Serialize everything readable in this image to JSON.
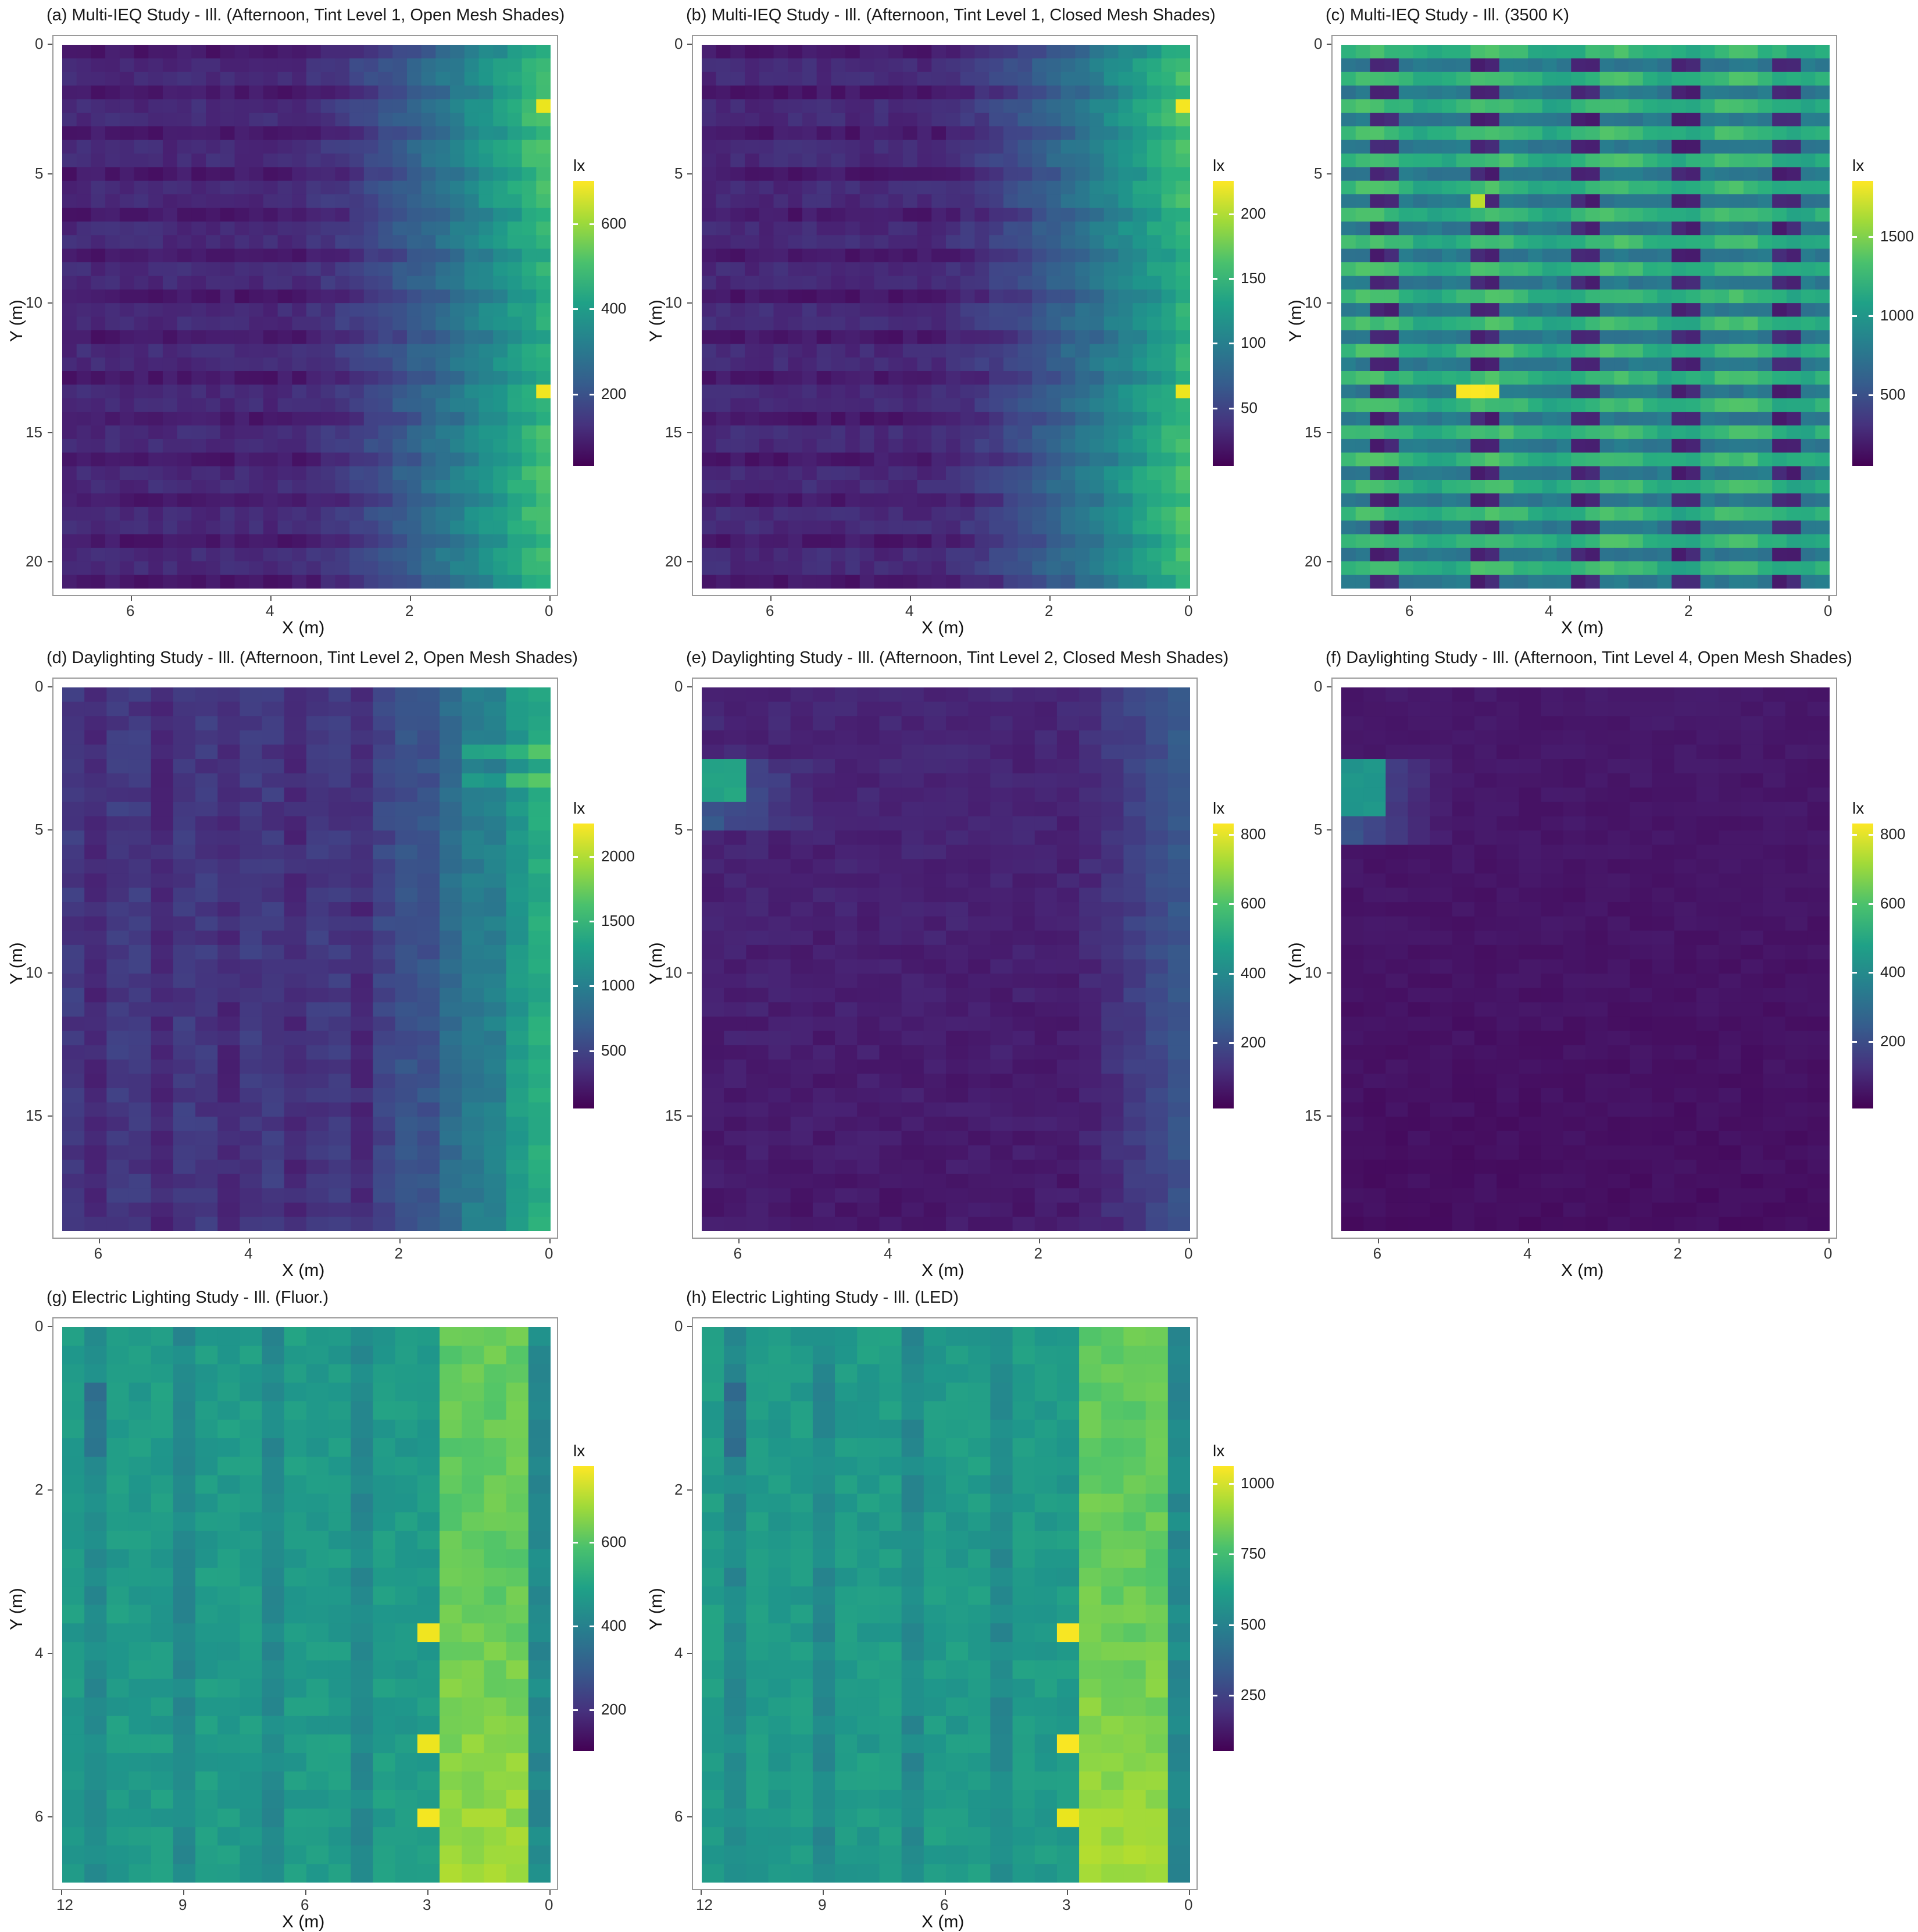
{
  "chart_data": [
    {
      "id": "a",
      "type": "heatmap",
      "title": "(a) Multi-IEQ Study - Ill. (Afternoon, Tint Level 1, Open Mesh Shades)",
      "xlabel": "X (m)",
      "ylabel": "Y (m)",
      "xlim": [
        7,
        0
      ],
      "ylim": [
        0,
        21
      ],
      "xticks": [
        "6",
        "4",
        "2",
        "0"
      ],
      "yticks": [
        "0",
        "5",
        "10",
        "15",
        "20"
      ],
      "legend_title": "lx",
      "legend_ticks": [
        "200",
        "400",
        "600"
      ],
      "legend_range": [
        30,
        700
      ],
      "pattern": "window_right"
    },
    {
      "id": "b",
      "type": "heatmap",
      "title": "(b) Multi-IEQ Study - Ill. (Afternoon, Tint Level 1, Closed Mesh Shades)",
      "xlabel": "X (m)",
      "ylabel": "Y (m)",
      "xlim": [
        7,
        0
      ],
      "ylim": [
        0,
        21
      ],
      "xticks": [
        "6",
        "4",
        "2",
        "0"
      ],
      "yticks": [
        "0",
        "5",
        "10",
        "15",
        "20"
      ],
      "legend_title": "lx",
      "legend_ticks": [
        "50",
        "100",
        "150",
        "200"
      ],
      "legend_range": [
        5,
        225
      ],
      "pattern": "window_right"
    },
    {
      "id": "c",
      "type": "heatmap",
      "title": "(c) Multi-IEQ Study - Ill. (3500 K)",
      "xlabel": "X (m)",
      "ylabel": "Y (m)",
      "xlim": [
        7,
        0
      ],
      "ylim": [
        0,
        21
      ],
      "xticks": [
        "6",
        "4",
        "2",
        "0"
      ],
      "yticks": [
        "0",
        "5",
        "10",
        "15",
        "20"
      ],
      "legend_title": "lx",
      "legend_ticks": [
        "500",
        "1000",
        "1500"
      ],
      "legend_range": [
        50,
        1850
      ],
      "pattern": "stripes"
    },
    {
      "id": "d",
      "type": "heatmap",
      "title": "(d) Daylighting Study - Ill. (Afternoon, Tint Level 2, Open Mesh Shades)",
      "xlabel": "X (m)",
      "ylabel": "Y (m)",
      "xlim": [
        6.5,
        0
      ],
      "ylim": [
        0,
        19
      ],
      "xticks": [
        "6",
        "4",
        "2",
        "0"
      ],
      "yticks": [
        "0",
        "5",
        "10",
        "15"
      ],
      "legend_title": "lx",
      "legend_ticks": [
        "500",
        "1000",
        "1500",
        "2000"
      ],
      "legend_range": [
        50,
        2250
      ],
      "pattern": "daylight_strong"
    },
    {
      "id": "e",
      "type": "heatmap",
      "title": "(e) Daylighting Study - Ill. (Afternoon, Tint Level 2, Closed Mesh Shades)",
      "xlabel": "X (m)",
      "ylabel": "Y (m)",
      "xlim": [
        6.5,
        0
      ],
      "ylim": [
        0,
        19
      ],
      "xticks": [
        "6",
        "4",
        "2",
        "0"
      ],
      "yticks": [
        "0",
        "5",
        "10",
        "15"
      ],
      "legend_title": "lx",
      "legend_ticks": [
        "200",
        "400",
        "600",
        "800"
      ],
      "legend_range": [
        10,
        830
      ],
      "pattern": "daylight_dim"
    },
    {
      "id": "f",
      "type": "heatmap",
      "title": "(f) Daylighting Study - Ill. (Afternoon, Tint Level 4, Open Mesh Shades)",
      "xlabel": "X (m)",
      "ylabel": "Y (m)",
      "xlim": [
        6.5,
        0
      ],
      "ylim": [
        0,
        19
      ],
      "xticks": [
        "6",
        "4",
        "2",
        "0"
      ],
      "yticks": [
        "0",
        "5",
        "10",
        "15"
      ],
      "legend_title": "lx",
      "legend_ticks": [
        "200",
        "400",
        "600",
        "800"
      ],
      "legend_range": [
        5,
        830
      ],
      "pattern": "daylight_dark"
    },
    {
      "id": "g",
      "type": "heatmap",
      "title": "(g) Electric Lighting Study - Ill. (Fluor.)",
      "xlabel": "X (m)",
      "ylabel": "Y (m)",
      "xlim": [
        12,
        0
      ],
      "ylim": [
        0,
        6.8
      ],
      "xticks": [
        "12",
        "9",
        "6",
        "3",
        "0"
      ],
      "yticks": [
        "0",
        "2",
        "4",
        "6"
      ],
      "legend_title": "lx",
      "legend_ticks": [
        "200",
        "400",
        "600"
      ],
      "legend_range": [
        100,
        780
      ],
      "pattern": "electric"
    },
    {
      "id": "h",
      "type": "heatmap",
      "title": "(h) Electric Lighting Study - Ill. (LED)",
      "xlabel": "X (m)",
      "ylabel": "Y (m)",
      "xlim": [
        12,
        0
      ],
      "ylim": [
        0,
        6.8
      ],
      "xticks": [
        "12",
        "9",
        "6",
        "3",
        "0"
      ],
      "yticks": [
        "0",
        "2",
        "4",
        "6"
      ],
      "legend_title": "lx",
      "legend_ticks": [
        "250",
        "500",
        "750",
        "1000"
      ],
      "legend_range": [
        50,
        1060
      ],
      "pattern": "electric"
    }
  ]
}
